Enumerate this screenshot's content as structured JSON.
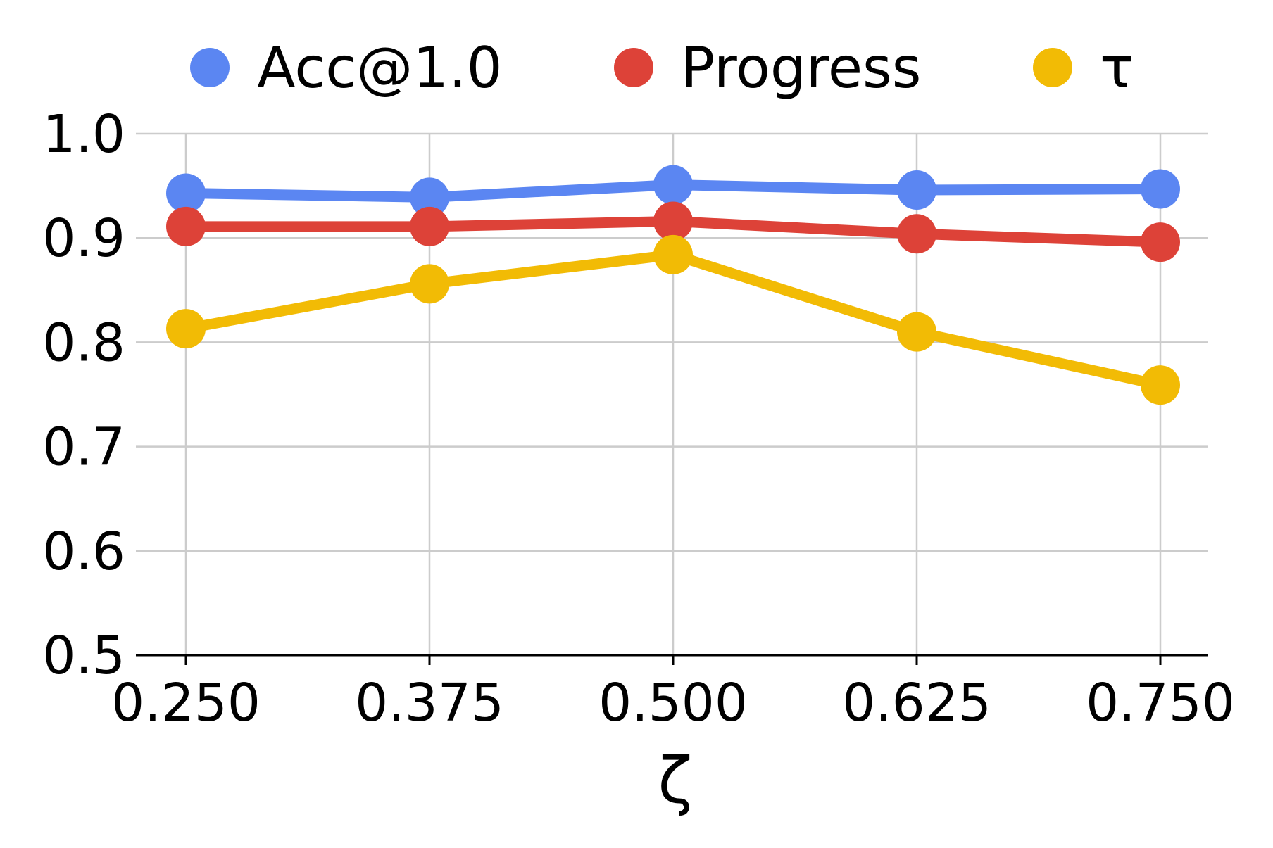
{
  "chart_data": {
    "type": "line",
    "title": "",
    "xlabel": "ζ",
    "ylabel": "",
    "x": [
      0.25,
      0.375,
      0.5,
      0.625,
      0.75
    ],
    "x_tick_labels": [
      "0.250",
      "0.375",
      "0.500",
      "0.625",
      "0.750"
    ],
    "y_ticks": [
      0.5,
      0.6,
      0.7,
      0.8,
      0.9,
      1.0
    ],
    "y_tick_labels": [
      "0.5",
      "0.6",
      "0.7",
      "0.8",
      "0.9",
      "1.0"
    ],
    "ylim": [
      0.5,
      1.0
    ],
    "grid": true,
    "legend_position": "top",
    "series": [
      {
        "name": "Acc@1.0",
        "color": "#5b86f2",
        "values": [
          0.943,
          0.939,
          0.951,
          0.946,
          0.947
        ]
      },
      {
        "name": "Progress",
        "color": "#dd4238",
        "values": [
          0.911,
          0.911,
          0.916,
          0.904,
          0.896
        ]
      },
      {
        "name": "τ",
        "color": "#f2bb05",
        "values": [
          0.813,
          0.856,
          0.884,
          0.81,
          0.759
        ]
      }
    ]
  }
}
